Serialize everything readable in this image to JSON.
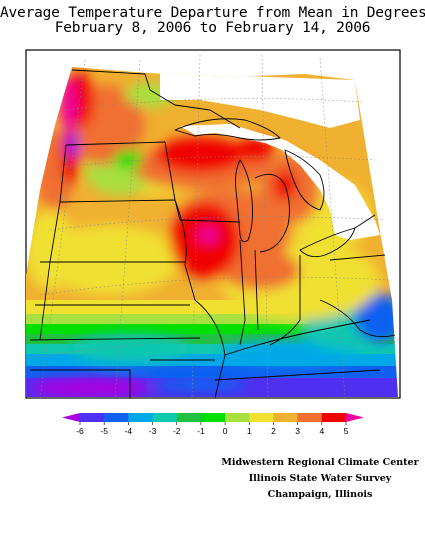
{
  "title": {
    "line1": "Average Temperature Departure from Mean in Degrees F",
    "line2": "February 8, 2006 to February 14, 2006"
  },
  "legend": {
    "ticks": [
      "-6",
      "-5",
      "-4",
      "-3",
      "-2",
      "-1",
      "0",
      "1",
      "2",
      "3",
      "4",
      "5"
    ],
    "colors": [
      "#a800e0",
      "#5030f0",
      "#1060f0",
      "#00a8e8",
      "#10c8b0",
      "#20c040",
      "#00e000",
      "#a8e040",
      "#f0e030",
      "#f0b030",
      "#f07030",
      "#f00000",
      "#f000a0"
    ]
  },
  "credits": {
    "line1": "Midwestern Regional Climate Center",
    "line2": "Illinois State Water Survey",
    "line3": "Champaign, Illinois"
  },
  "map": {
    "map_background": "#ffffff",
    "frame_color": "#000000"
  }
}
